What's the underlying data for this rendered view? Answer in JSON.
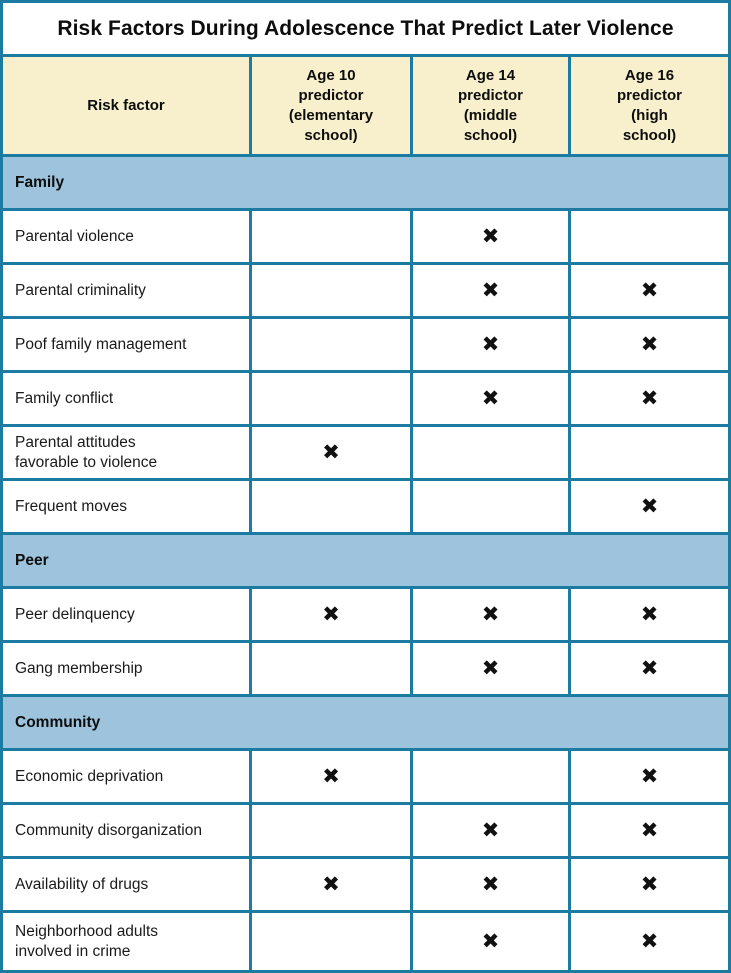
{
  "title": "Risk Factors During Adolescence That Predict Later Violence",
  "colors": {
    "border_teal": "#1b7ba1",
    "header_cream": "#f8f0cc",
    "section_blue": "#9dc3dd",
    "text": "#0d0d0d"
  },
  "table": {
    "x_mark": "✖",
    "columns": [
      {
        "label": "Risk factor"
      },
      {
        "label": "Age 10\npredictor\n(elementary\nschool)"
      },
      {
        "label": "Age 14\npredictor\n(middle\nschool)"
      },
      {
        "label": "Age 16\npredictor\n(high\nschool)"
      }
    ],
    "sections": [
      {
        "label": "Family",
        "rows": [
          {
            "label": "Parental violence",
            "marks": [
              false,
              true,
              false
            ]
          },
          {
            "label": "Parental criminality",
            "marks": [
              false,
              true,
              true
            ]
          },
          {
            "label": "Poof family management",
            "marks": [
              false,
              true,
              true
            ]
          },
          {
            "label": "Family conflict",
            "marks": [
              false,
              true,
              true
            ]
          },
          {
            "label": "Parental attitudes\nfavorable to violence",
            "marks": [
              true,
              false,
              false
            ]
          },
          {
            "label": "Frequent moves",
            "marks": [
              false,
              false,
              true
            ]
          }
        ]
      },
      {
        "label": "Peer",
        "rows": [
          {
            "label": "Peer delinquency",
            "marks": [
              true,
              true,
              true
            ]
          },
          {
            "label": "Gang membership",
            "marks": [
              false,
              true,
              true
            ]
          }
        ]
      },
      {
        "label": "Community",
        "rows": [
          {
            "label": "Economic deprivation",
            "marks": [
              true,
              false,
              true
            ]
          },
          {
            "label": "Community disorganization",
            "marks": [
              false,
              true,
              true
            ]
          },
          {
            "label": "Availability of drugs",
            "marks": [
              true,
              true,
              true
            ]
          },
          {
            "label": "Neighborhood adults\ninvolved in crime",
            "marks": [
              false,
              true,
              true
            ]
          }
        ]
      }
    ]
  }
}
